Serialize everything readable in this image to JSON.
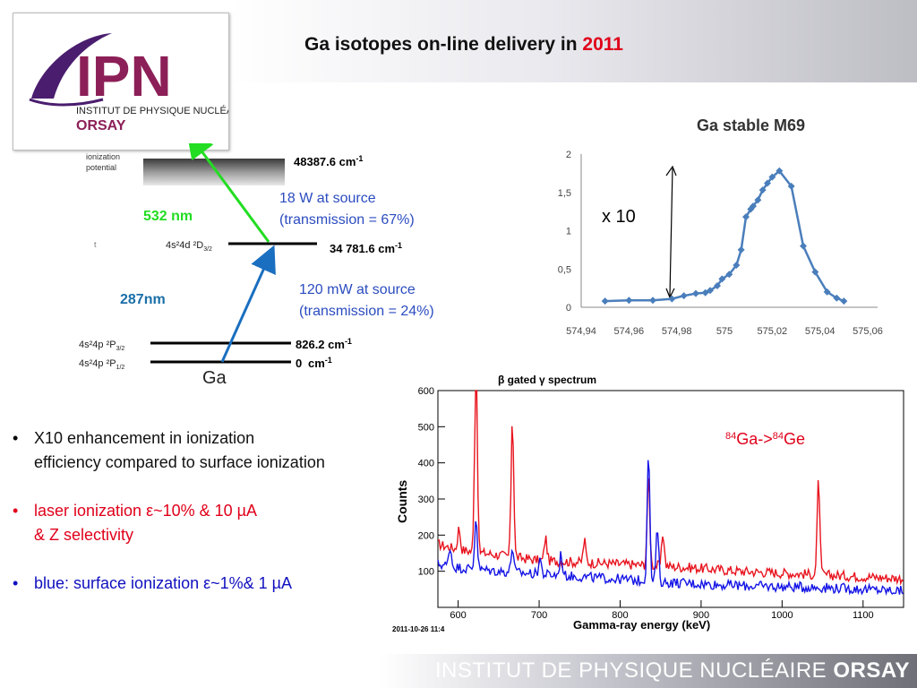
{
  "slide": {
    "title_prefix": "Ga isotopes on-line delivery in ",
    "title_year": "2011",
    "footer_regular": "INSTITUT DE PHYSIQUE NUCLÉAIRE ",
    "footer_bold": "ORSAY"
  },
  "logo": {
    "letters": "IPN",
    "line1": "INSTITUT DE PHYSIQUE NUCLÉAIRE",
    "line2": "ORSAY"
  },
  "level_diagram": {
    "ionization_label_1": "ionization",
    "ionization_label_2": "potential",
    "ip_energy": "48387.6 cm",
    "level_4d": "4s²4d  ²D",
    "level_4d_sub": "3/2",
    "level_4d_energy": "34 781.6 cm",
    "level_p32": "4s²4p  ²P",
    "level_p32_sub": "3/2",
    "level_p32_energy": "826.2 cm",
    "level_p12": "4s²4p  ²P",
    "level_p12_sub": "1/2",
    "level_p12_energy_a": "0",
    "level_p12_energy_b": "cm",
    "exponent": "-1",
    "element": "Ga",
    "step2_wavelength": "532 nm",
    "step1_wavelength": "287nm",
    "power_green_1": "18 W at source",
    "power_green_2": "(transmission = 67%)",
    "power_blue_1": "120 mW at source",
    "power_blue_2": "(transmission = 24%)",
    "colors": {
      "green": "#22dd22",
      "blue": "#1a6fc0",
      "text_blue": "#2b4cc0",
      "step1": "#1a6fa8"
    }
  },
  "bullets": [
    {
      "text_1": "X10 enhancement  in ionization",
      "text_2": "efficiency compared to surface ionization",
      "color": "#111111"
    },
    {
      "text_1": "laser ionization ε~10%  & 10 µA",
      "text_2": "&  Z selectivity",
      "color": "#e0001a"
    },
    {
      "text_1": "blue: surface ionization ε~1%& 1 µA",
      "text_2": "",
      "color": "#1010c0"
    }
  ],
  "chart_data": [
    {
      "type": "line",
      "title": "Ga stable M69",
      "annotation": "x 10",
      "x": [
        574.95,
        574.96,
        574.97,
        574.978,
        574.983,
        574.988,
        574.992,
        574.994,
        574.997,
        574.999,
        575.002,
        575.005,
        575.007,
        575.009,
        575.011,
        575.012,
        575.014,
        575.016,
        575.018,
        575.02,
        575.023,
        575.028,
        575.033,
        575.038,
        575.043,
        575.047,
        575.05
      ],
      "y": [
        0.08,
        0.09,
        0.09,
        0.11,
        0.15,
        0.18,
        0.19,
        0.22,
        0.28,
        0.37,
        0.43,
        0.55,
        0.75,
        1.18,
        1.28,
        1.32,
        1.4,
        1.53,
        1.62,
        1.7,
        1.78,
        1.58,
        0.8,
        0.46,
        0.2,
        0.12,
        0.08
      ],
      "xlim": [
        574.94,
        575.06
      ],
      "ylim": [
        0,
        2
      ],
      "xticks": [
        "574,94",
        "574,96",
        "574,98",
        "575",
        "575,02",
        "575,04",
        "575,06"
      ],
      "yticks": [
        "0",
        "0,5",
        "1",
        "1,5",
        "2"
      ],
      "line_color": "#4a7ebb",
      "grid": false
    },
    {
      "type": "line",
      "title": "β gated γ spectrum",
      "xlabel": "Gamma-ray energy (keV)",
      "ylabel": "Counts",
      "annotation": "⁸⁴Ga->⁸⁴Ge",
      "timestamp": "2011-10-26 11:4",
      "xlim": [
        575,
        1150
      ],
      "ylim": [
        0,
        600
      ],
      "xticks": [
        "600",
        "700",
        "800",
        "900",
        "1000",
        "1100"
      ],
      "yticks": [
        "100",
        "200",
        "300",
        "400",
        "500",
        "600"
      ],
      "series": [
        {
          "color": "#e8141e",
          "baseline": [
            [
              575,
              175
            ],
            [
              600,
              160
            ],
            [
              650,
              145
            ],
            [
              700,
              130
            ],
            [
              750,
              125
            ],
            [
              800,
              120
            ],
            [
              850,
              115
            ],
            [
              900,
              108
            ],
            [
              950,
              100
            ],
            [
              1000,
              95
            ],
            [
              1050,
              90
            ],
            [
              1100,
              85
            ],
            [
              1150,
              80
            ]
          ],
          "peaks": [
            [
              601,
              60
            ],
            [
              622,
              570
            ],
            [
              667,
              385
            ],
            [
              708,
              65
            ],
            [
              756,
              60
            ],
            [
              835,
              240
            ],
            [
              853,
              90
            ],
            [
              1045,
              265
            ]
          ]
        },
        {
          "color": "#1414e6",
          "baseline": [
            [
              575,
              120
            ],
            [
              600,
              110
            ],
            [
              650,
              100
            ],
            [
              700,
              92
            ],
            [
              750,
              85
            ],
            [
              800,
              78
            ],
            [
              850,
              70
            ],
            [
              900,
              65
            ],
            [
              950,
              60
            ],
            [
              1000,
              57
            ],
            [
              1050,
              55
            ],
            [
              1100,
              50
            ],
            [
              1150,
              45
            ]
          ],
          "peaks": [
            [
              590,
              55
            ],
            [
              622,
              145
            ],
            [
              667,
              70
            ],
            [
              701,
              45
            ],
            [
              727,
              60
            ],
            [
              835,
              365
            ],
            [
              846,
              150
            ]
          ]
        }
      ]
    }
  ]
}
